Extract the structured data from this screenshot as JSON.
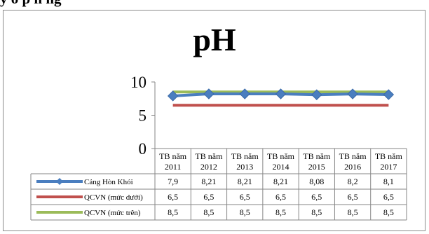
{
  "caption": "y ô p n ng",
  "chart_data": {
    "type": "line",
    "title": "pH",
    "xlabel": "",
    "ylabel": "",
    "ylim": [
      0,
      10
    ],
    "yticks": [
      "0",
      "5",
      "10"
    ],
    "grid": false,
    "legend": "data-table-left",
    "categories": [
      [
        "TB năm",
        "2011"
      ],
      [
        "TB năm",
        "2012"
      ],
      [
        "TB năm",
        "2013"
      ],
      [
        "TB năm",
        "2014"
      ],
      [
        "TB năm",
        "2015"
      ],
      [
        "TB năm",
        "2016"
      ],
      [
        "TB năm",
        "2017"
      ]
    ],
    "series": [
      {
        "name": "Cảng Hòn Khói",
        "color": "#4a7ebf",
        "marker": "diamond",
        "values": [
          7.9,
          8.21,
          8.21,
          8.21,
          8.08,
          8.2,
          8.1
        ],
        "labels": [
          "7,9",
          "8,21",
          "8,21",
          "8,21",
          "8,08",
          "8,2",
          "8,1"
        ]
      },
      {
        "name": "QCVN (mức dưới)",
        "color": "#c0504d",
        "marker": "none",
        "values": [
          6.5,
          6.5,
          6.5,
          6.5,
          6.5,
          6.5,
          6.5
        ],
        "labels": [
          "6,5",
          "6,5",
          "6,5",
          "6,5",
          "6,5",
          "6,5",
          "6,5"
        ]
      },
      {
        "name": "QCVN (mức trên)",
        "color": "#9bbb59",
        "marker": "none",
        "values": [
          8.5,
          8.5,
          8.5,
          8.5,
          8.5,
          8.5,
          8.5
        ],
        "labels": [
          "8,5",
          "8,5",
          "8,5",
          "8,5",
          "8,5",
          "8,5",
          "8,5"
        ]
      }
    ]
  }
}
